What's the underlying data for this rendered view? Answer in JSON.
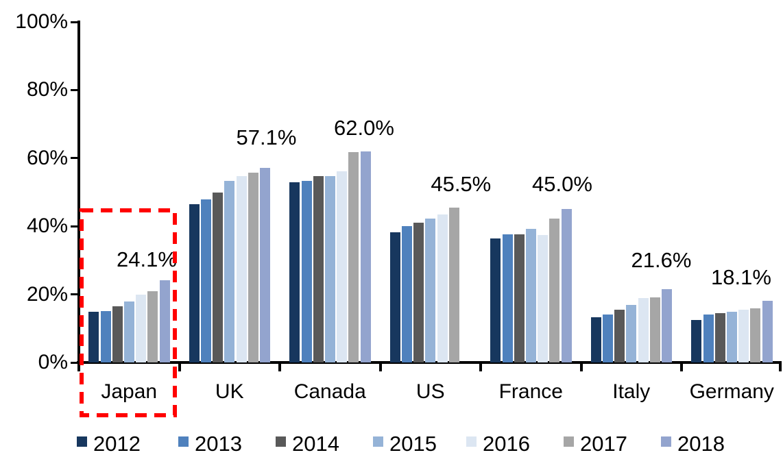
{
  "chart_data": {
    "type": "bar",
    "title": "",
    "xlabel": "",
    "ylabel": "",
    "ylim": [
      0,
      100
    ],
    "grid": false,
    "legend_position": "bottom",
    "y_ticks": [
      {
        "value": 0,
        "label": "0%"
      },
      {
        "value": 20,
        "label": "20%"
      },
      {
        "value": 40,
        "label": "40%"
      },
      {
        "value": 60,
        "label": "60%"
      },
      {
        "value": 80,
        "label": "80%"
      },
      {
        "value": 100,
        "label": "100%"
      }
    ],
    "categories": [
      "Japan",
      "UK",
      "Canada",
      "US",
      "France",
      "Italy",
      "Germany"
    ],
    "series": [
      {
        "name": "2012",
        "color": "#17375E",
        "values": [
          14.8,
          46.4,
          53.0,
          38.2,
          36.5,
          13.3,
          12.4
        ]
      },
      {
        "name": "2013",
        "color": "#4F81BD",
        "values": [
          15.0,
          47.9,
          53.4,
          40.0,
          37.7,
          14.1,
          14.0
        ]
      },
      {
        "name": "2014",
        "color": "#595959",
        "values": [
          16.5,
          50.0,
          54.8,
          41.0,
          37.6,
          15.4,
          14.4
        ]
      },
      {
        "name": "2015",
        "color": "#95B3D7",
        "values": [
          18.0,
          53.3,
          54.7,
          42.2,
          39.2,
          16.9,
          14.8
        ]
      },
      {
        "name": "2016",
        "color": "#DCE6F2",
        "values": [
          19.9,
          54.8,
          56.1,
          43.5,
          37.4,
          18.9,
          15.4
        ]
      },
      {
        "name": "2017",
        "color": "#A6A6A6",
        "values": [
          21.0,
          55.8,
          61.7,
          45.5,
          42.2,
          19.2,
          15.9
        ]
      },
      {
        "name": "2018",
        "color": "#93A4CE",
        "values": [
          24.1,
          57.1,
          62.0,
          null,
          45.0,
          21.6,
          18.1
        ]
      }
    ],
    "data_labels": [
      "24.1%",
      "57.1%",
      "62.0%",
      "45.5%",
      "45.0%",
      "21.6%",
      "18.1%"
    ],
    "highlight": {
      "category": "Japan",
      "style": "red-dashed-box",
      "color": "#FF0000"
    }
  }
}
